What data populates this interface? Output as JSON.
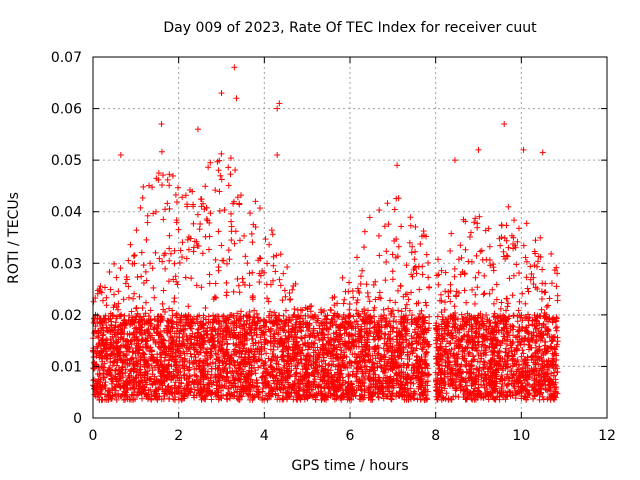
{
  "chart_data": {
    "type": "scatter",
    "title": "Day 009 of 2023, Rate Of TEC Index for receiver cuut",
    "xlabel": "GPS time / hours",
    "ylabel": "ROTI / TECUs",
    "xlim": [
      0,
      12
    ],
    "ylim": [
      0,
      0.07
    ],
    "xticks": [
      0,
      2,
      4,
      6,
      8,
      10,
      12
    ],
    "xtick_labels": [
      "0",
      "2",
      "4",
      "6",
      "8",
      "10",
      "12"
    ],
    "yticks": [
      0,
      0.01,
      0.02,
      0.03,
      0.04,
      0.05,
      0.06,
      0.07
    ],
    "ytick_labels": [
      "0",
      "0.01",
      "0.02",
      "0.03",
      "0.04",
      "0.05",
      "0.06",
      "0.07"
    ],
    "grid": true,
    "marker": "+",
    "marker_color": "#ff0000",
    "series": [
      {
        "name": "ROTI",
        "coverage_hours": [
          [
            0.0,
            7.85
          ],
          [
            8.0,
            10.85
          ]
        ],
        "typical_range": [
          0.004,
          0.02
        ],
        "envelope": [
          {
            "x": 0.0,
            "y": 0.025
          },
          {
            "x": 0.5,
            "y": 0.03
          },
          {
            "x": 1.0,
            "y": 0.04
          },
          {
            "x": 1.5,
            "y": 0.055
          },
          {
            "x": 2.0,
            "y": 0.045
          },
          {
            "x": 2.5,
            "y": 0.045
          },
          {
            "x": 3.0,
            "y": 0.055
          },
          {
            "x": 3.5,
            "y": 0.045
          },
          {
            "x": 4.0,
            "y": 0.04
          },
          {
            "x": 4.5,
            "y": 0.03
          },
          {
            "x": 5.0,
            "y": 0.022
          },
          {
            "x": 5.5,
            "y": 0.022
          },
          {
            "x": 6.0,
            "y": 0.03
          },
          {
            "x": 6.5,
            "y": 0.04
          },
          {
            "x": 7.0,
            "y": 0.045
          },
          {
            "x": 7.5,
            "y": 0.04
          },
          {
            "x": 7.85,
            "y": 0.035
          },
          {
            "x": 8.0,
            "y": 0.03
          },
          {
            "x": 8.5,
            "y": 0.04
          },
          {
            "x": 9.0,
            "y": 0.04
          },
          {
            "x": 9.5,
            "y": 0.042
          },
          {
            "x": 10.0,
            "y": 0.04
          },
          {
            "x": 10.5,
            "y": 0.035
          },
          {
            "x": 10.85,
            "y": 0.03
          }
        ],
        "notable_points": [
          {
            "x": 3.3,
            "y": 0.068
          },
          {
            "x": 3.0,
            "y": 0.063
          },
          {
            "x": 3.35,
            "y": 0.062
          },
          {
            "x": 4.35,
            "y": 0.061
          },
          {
            "x": 4.3,
            "y": 0.06
          },
          {
            "x": 9.6,
            "y": 0.057
          },
          {
            "x": 1.6,
            "y": 0.057
          },
          {
            "x": 2.45,
            "y": 0.056
          },
          {
            "x": 10.05,
            "y": 0.052
          },
          {
            "x": 10.5,
            "y": 0.0515
          },
          {
            "x": 0.65,
            "y": 0.051
          },
          {
            "x": 4.3,
            "y": 0.051
          },
          {
            "x": 9.0,
            "y": 0.052
          },
          {
            "x": 7.1,
            "y": 0.049
          },
          {
            "x": 8.45,
            "y": 0.05
          }
        ]
      }
    ]
  }
}
